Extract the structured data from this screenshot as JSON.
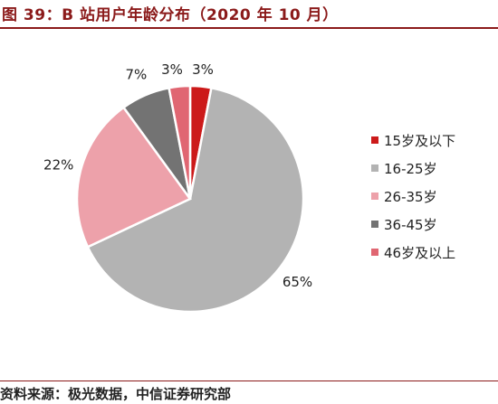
{
  "figure": {
    "title": "图 39：B 站用户年龄分布（2020 年 10 月）",
    "source": "资料来源：极光数据，中信证券研究部"
  },
  "chart_data": {
    "type": "pie",
    "categories": [
      "15岁及以下",
      "16-25岁",
      "26-35岁",
      "36-45岁",
      "46岁及以上"
    ],
    "values": [
      3,
      65,
      22,
      7,
      3
    ],
    "data_labels": [
      "3%",
      "65%",
      "22%",
      "7%",
      "3%"
    ],
    "colors": [
      "#cc1a1a",
      "#b3b3b3",
      "#eda1aa",
      "#737373",
      "#e06672"
    ],
    "legend_position": "right"
  }
}
